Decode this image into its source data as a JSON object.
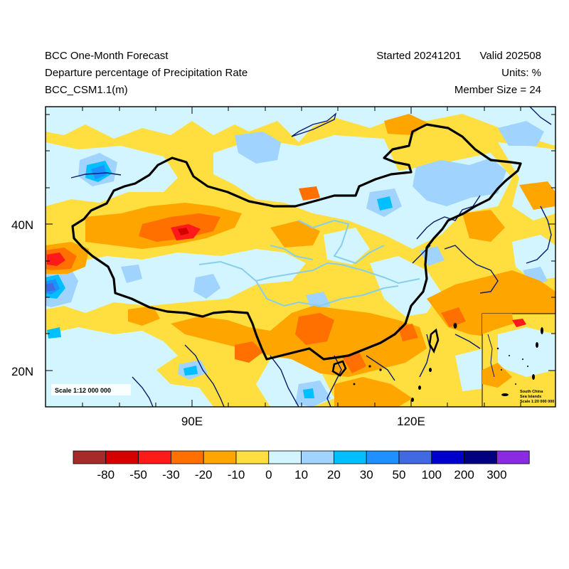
{
  "header": {
    "title": "BCC One-Month Forecast",
    "variable": "Departure percentage of Precipitation Rate",
    "model": "BCC_CSM1.1(m)",
    "started": "Started 20241201",
    "valid": "Valid 202508",
    "units": "Units: %",
    "members": "Member Size = 24"
  },
  "axes": {
    "lat_labels": [
      "40N",
      "20N"
    ],
    "lon_labels": [
      "90E",
      "120E"
    ]
  },
  "scale_note": "Scale 1:12 000 000",
  "inset": {
    "title_line1": "South China",
    "title_line2": "Sea Islands",
    "scale": "Scale 1:20 000 000"
  },
  "colorbar": {
    "labels": [
      "-80",
      "-50",
      "-30",
      "-20",
      "-10",
      "0",
      "10",
      "20",
      "30",
      "50",
      "100",
      "200",
      "300"
    ],
    "colors": [
      "#a52a2a",
      "#d50000",
      "#ff1a1a",
      "#ff7000",
      "#ffa500",
      "#ffdf40",
      "#d3f5ff",
      "#a0d4ff",
      "#00bfff",
      "#1e90ff",
      "#4169e1",
      "#0000cd",
      "#000080",
      "#8a2be2"
    ]
  }
}
